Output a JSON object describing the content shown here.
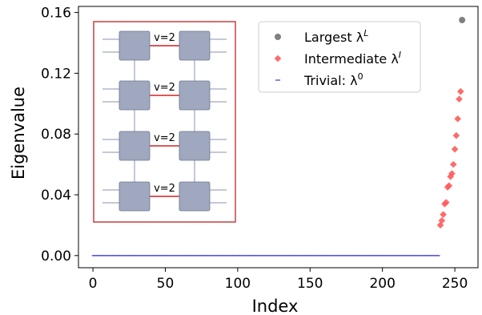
{
  "chart_data": {
    "type": "scatter",
    "xlabel": "Index",
    "ylabel": "Eigenvalue",
    "xlim": [
      -10,
      266
    ],
    "ylim": [
      -0.008,
      0.164
    ],
    "x_ticks": [
      0,
      50,
      100,
      150,
      200,
      250
    ],
    "y_ticks": [
      0.0,
      0.04,
      0.08,
      0.12,
      0.16
    ],
    "y_tick_labels": [
      "0.00",
      "0.04",
      "0.08",
      "0.12",
      "0.16"
    ],
    "grid": false,
    "legend_position": "top-right",
    "series": [
      {
        "name": "Largest λ^L",
        "legend_main": "Largest λ",
        "legend_sup": "L",
        "marker": "circle",
        "color": "#808080",
        "points": [
          [
            255,
            0.155
          ]
        ]
      },
      {
        "name": "Intermediate λ^I",
        "legend_main": "Intermediate λ",
        "legend_sup": "I",
        "marker": "diamond",
        "color": "#ff5a5a",
        "points": [
          [
            240,
            0.02
          ],
          [
            241,
            0.023
          ],
          [
            242,
            0.027
          ],
          [
            243,
            0.034
          ],
          [
            244,
            0.035
          ],
          [
            245,
            0.045
          ],
          [
            246,
            0.046
          ],
          [
            247,
            0.052
          ],
          [
            248,
            0.054
          ],
          [
            249,
            0.06
          ],
          [
            250,
            0.07
          ],
          [
            251,
            0.079
          ],
          [
            252,
            0.09
          ],
          [
            253,
            0.103
          ],
          [
            254,
            0.108
          ]
        ]
      },
      {
        "name": "Trivial: λ^0",
        "legend_main": "Trivial: λ",
        "legend_sup": "0",
        "marker": "dash",
        "color": "#3a3ad6",
        "points_count_note": "",
        "x_range": [
          0,
          239
        ],
        "value": 0.0
      }
    ],
    "inset": {
      "bond_labels": [
        "v=2",
        "v=2",
        "v=2",
        "v=2"
      ],
      "colors": {
        "tensor": "#9fa8be",
        "border": "#c84b4b",
        "bond": "#d02020",
        "leg": "#8a93b0"
      }
    }
  }
}
